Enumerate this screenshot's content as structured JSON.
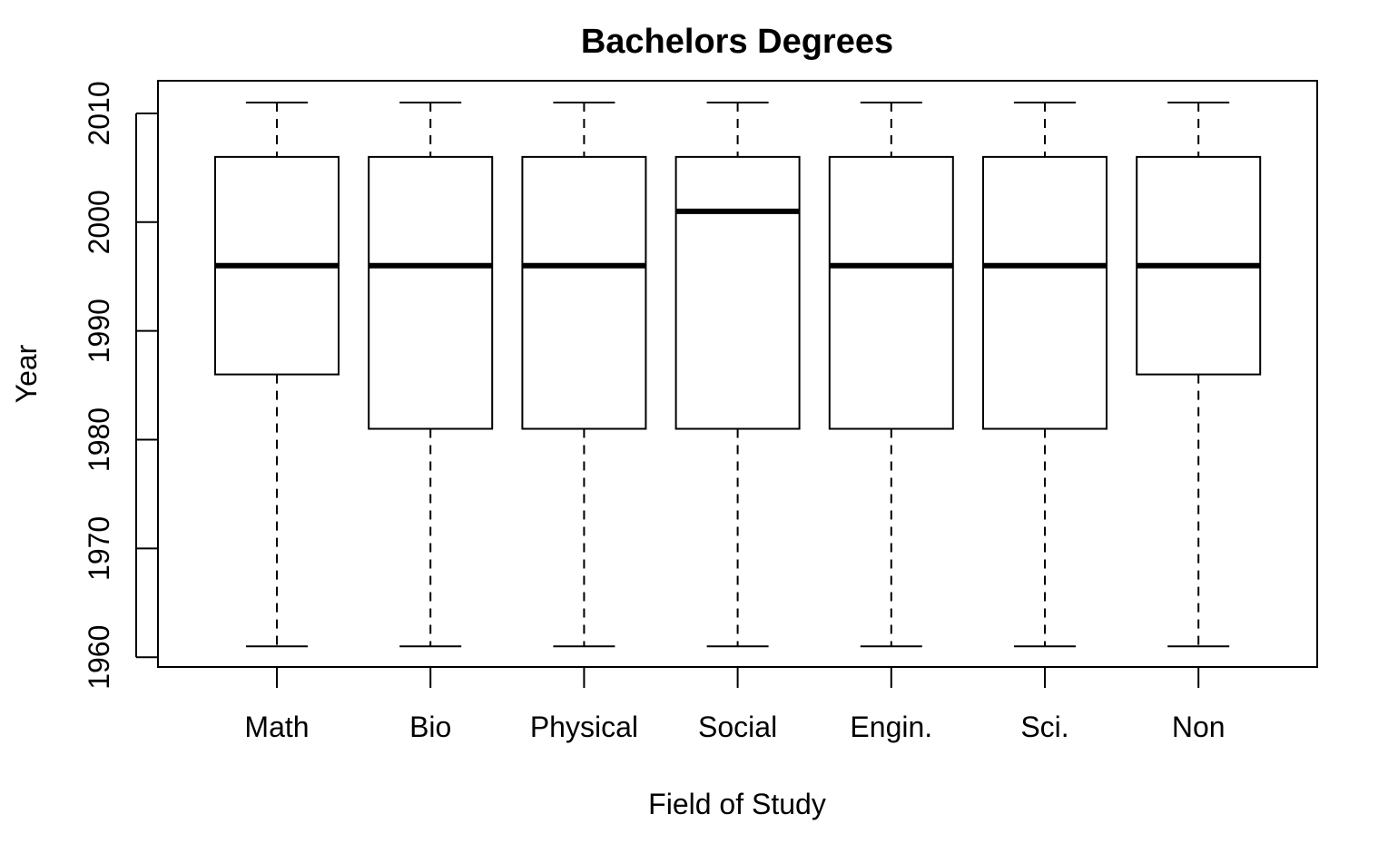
{
  "chart_data": {
    "type": "boxplot",
    "title": "Bachelors Degrees",
    "xlabel": "Field of Study",
    "ylabel": "Year",
    "ylim": [
      1959.1,
      2013
    ],
    "yticks": [
      1960,
      1970,
      1980,
      1990,
      2000,
      2010
    ],
    "ytick_labels": [
      "1960",
      "1970",
      "1980",
      "1990",
      "2000",
      "2010"
    ],
    "categories": [
      "Math",
      "Bio",
      "Physical",
      "Social",
      "Engin.",
      "Sci.",
      "Non"
    ],
    "boxes": [
      {
        "label": "Math",
        "min": 1961,
        "q1": 1986,
        "median": 1996,
        "q3": 2006,
        "max": 2011
      },
      {
        "label": "Bio",
        "min": 1961,
        "q1": 1981,
        "median": 1996,
        "q3": 2006,
        "max": 2011
      },
      {
        "label": "Physical",
        "min": 1961,
        "q1": 1981,
        "median": 1996,
        "q3": 2006,
        "max": 2011
      },
      {
        "label": "Social",
        "min": 1961,
        "q1": 1981,
        "median": 2001,
        "q3": 2006,
        "max": 2011
      },
      {
        "label": "Engin.",
        "min": 1961,
        "q1": 1981,
        "median": 1996,
        "q3": 2006,
        "max": 2011
      },
      {
        "label": "Sci.",
        "min": 1961,
        "q1": 1981,
        "median": 1996,
        "q3": 2006,
        "max": 2011
      },
      {
        "label": "Non",
        "min": 1961,
        "q1": 1986,
        "median": 1996,
        "q3": 2006,
        "max": 2011
      }
    ],
    "grid": false,
    "legend": "none",
    "colors": {
      "box_fill": "#ffffff",
      "stroke": "#000000"
    }
  }
}
